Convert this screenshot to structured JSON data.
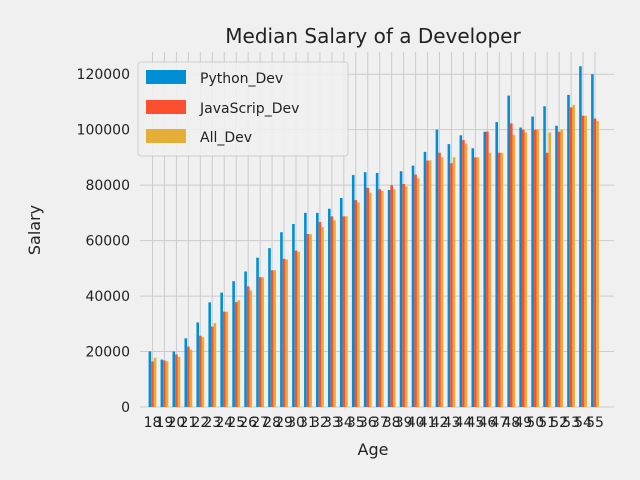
{
  "chart_data": {
    "type": "bar",
    "title": "Median Salary of a Developer",
    "xlabel": "Age",
    "ylabel": "Salary",
    "ylim": [
      0,
      128000
    ],
    "yticks": [
      0,
      20000,
      40000,
      60000,
      80000,
      100000,
      120000
    ],
    "grid": true,
    "legend": "upper-left",
    "categories": [
      "18",
      "19",
      "20",
      "21",
      "22",
      "23",
      "24",
      "25",
      "26",
      "27",
      "28",
      "29",
      "30",
      "31",
      "32",
      "33",
      "34",
      "35",
      "36",
      "37",
      "38",
      "39",
      "40",
      "41",
      "42",
      "43",
      "44",
      "45",
      "46",
      "47",
      "48",
      "49",
      "50",
      "51",
      "52",
      "53",
      "54",
      "55"
    ],
    "series": [
      {
        "name": "Python_Dev",
        "color": "#008fd5",
        "values": [
          20046,
          17100,
          20000,
          24744,
          30500,
          37732,
          41247,
          45372,
          48876,
          53850,
          57287,
          63016,
          65998,
          70003,
          70000,
          71496,
          75370,
          83640,
          84666,
          84392,
          78254,
          85000,
          87038,
          91991,
          100000,
          94796,
          97962,
          93302,
          99240,
          102736,
          112285,
          100771,
          104708,
          108423,
          101407,
          112542,
          122870,
          120000
        ]
      },
      {
        "name": "JavaScrip_Dev",
        "color": "#fc4f30",
        "values": [
          16446,
          16791,
          18942,
          21780,
          25704,
          29000,
          34372,
          37810,
          43515,
          46823,
          49293,
          53437,
          56373,
          62375,
          66674,
          68745,
          68746,
          74583,
          79000,
          78508,
          79996,
          80403,
          83820,
          88833,
          91660,
          87892,
          96243,
          90000,
          99313,
          91660,
          102264,
          100000,
          100000,
          91660,
          99240,
          108000,
          105000,
          104000
        ]
      },
      {
        "name": "All_Dev",
        "color": "#e5ae37",
        "values": [
          17784,
          16500,
          18012,
          20628,
          25206,
          30252,
          34368,
          38496,
          42000,
          46752,
          49320,
          53200,
          56000,
          62316,
          64928,
          67317,
          68748,
          73752,
          77232,
          78000,
          78508,
          79536,
          82488,
          88935,
          90000,
          90056,
          95000,
          90000,
          91633,
          91660,
          98150,
          98964,
          100000,
          98988,
          100000,
          108923,
          105000,
          103117
        ]
      }
    ]
  }
}
